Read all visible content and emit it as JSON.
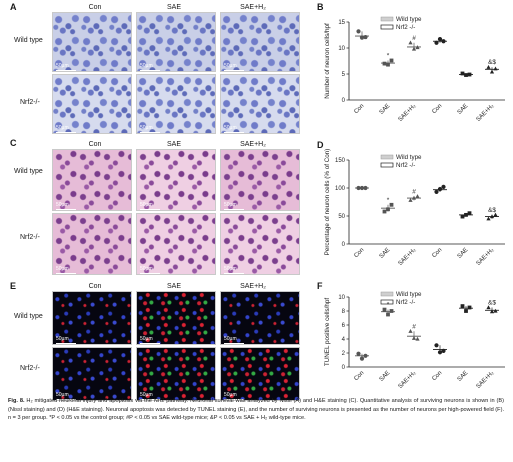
{
  "panels": {
    "A": {
      "letter": "A",
      "cols": [
        "Con",
        "SAE",
        "SAE+H₂"
      ],
      "rows": [
        "Wild type",
        "Nrf2-/-"
      ],
      "scale": "50µm"
    },
    "C": {
      "letter": "C",
      "cols": [
        "Con",
        "SAE",
        "SAE+H₂"
      ],
      "rows": [
        "Wild type",
        "Nrf2-/-"
      ],
      "scale": "50µm"
    },
    "E": {
      "letter": "E",
      "cols": [
        "Con",
        "SAE",
        "SAE+H₂"
      ],
      "rows": [
        "Wild type",
        "Nrf2-/-"
      ],
      "scale": "50µm"
    }
  },
  "legend": {
    "wild": "Wild type",
    "ko": "Nrf2 -/-"
  },
  "colors": {
    "nissl": "#6f7bc9",
    "he": "#e6bcd7",
    "tunel": "#060610",
    "axis": "#222222"
  },
  "chart_data": [
    {
      "panel": "B",
      "type": "scatter",
      "ylabel": "Number of neuron cells/hpf",
      "ylim": [
        0,
        15
      ],
      "yticks": [
        0,
        5,
        10,
        15
      ],
      "categories": [
        "Con",
        "SAE",
        "SAE+H₂",
        "Con",
        "SAE",
        "SAE+H₂"
      ],
      "groups": [
        "Wild type",
        "Wild type",
        "Wild type",
        "Nrf2 -/-",
        "Nrf2 -/-",
        "Nrf2 -/-"
      ],
      "means": [
        12.3,
        7.1,
        10.2,
        11.3,
        4.9,
        5.9
      ],
      "points": [
        [
          13.2,
          12.0,
          12.1
        ],
        [
          7.0,
          6.8,
          7.6
        ],
        [
          11.0,
          9.8,
          10.1
        ],
        [
          11.0,
          11.7,
          11.3
        ],
        [
          5.1,
          4.8,
          4.9
        ],
        [
          6.3,
          5.4,
          6.0
        ]
      ],
      "annotations": [
        "",
        "*",
        "#",
        "",
        "",
        "&$"
      ]
    },
    {
      "panel": "D",
      "type": "scatter",
      "ylabel": "Percentage of neuron cells (% of Con)",
      "ylim": [
        0,
        150
      ],
      "yticks": [
        0,
        50,
        100,
        150
      ],
      "categories": [
        "Con",
        "SAE",
        "SAE+H₂",
        "Con",
        "SAE",
        "SAE+H₂"
      ],
      "groups": [
        "Wild type",
        "Wild type",
        "Wild type",
        "Nrf2 -/-",
        "Nrf2 -/-",
        "Nrf2 -/-"
      ],
      "means": [
        100,
        64,
        82,
        97,
        52,
        49
      ],
      "points": [
        [
          100,
          100,
          100
        ],
        [
          58,
          62,
          70
        ],
        [
          78,
          82,
          85
        ],
        [
          93,
          98,
          102
        ],
        [
          49,
          52,
          55
        ],
        [
          45,
          49,
          52
        ]
      ],
      "annotations": [
        "",
        "*",
        "#",
        "",
        "",
        "&$"
      ]
    },
    {
      "panel": "F",
      "type": "scatter",
      "ylabel": "TUNEL positive cells/hpf",
      "ylim": [
        0,
        10
      ],
      "yticks": [
        0,
        2,
        4,
        6,
        8,
        10
      ],
      "categories": [
        "Con",
        "SAE",
        "SAE+H₂",
        "Con",
        "SAE",
        "SAE+H₂"
      ],
      "groups": [
        "Wild type",
        "Wild type",
        "Wild type",
        "Nrf2 -/-",
        "Nrf2 -/-",
        "Nrf2 -/-"
      ],
      "means": [
        1.6,
        7.9,
        4.4,
        2.5,
        8.4,
        8.1
      ],
      "points": [
        [
          1.9,
          1.2,
          1.6
        ],
        [
          8.2,
          7.5,
          8.0
        ],
        [
          5.1,
          4.1,
          4.0
        ],
        [
          3.1,
          2.1,
          2.3
        ],
        [
          8.7,
          8.0,
          8.5
        ],
        [
          8.5,
          7.9,
          8.0
        ]
      ],
      "annotations": [
        "",
        "*",
        "#",
        "",
        "",
        "&$"
      ]
    }
  ],
  "caption": {
    "fig": "Fig. 8.",
    "text": "H₂ mitigated neuronal injury and apoptosis via the Nrf2 pathway. Neuronal survival was analyzed by Nissl (A) and H&E staining (C). Quantitative analysis of surviving neurons is shown in (B) (Nissl staining) and (D) (H&E staining). Neuronal apoptosis was detected by TUNEL staining (E), and the number of surviving neurons is presented as the number of neurons per high-powered field (F). n = 3 per group. *P < 0.05 vs the control group; #P < 0.05 vs SAE wild-type mice; &P < 0.05 vs SAE + H₂ wild-type mice."
  }
}
